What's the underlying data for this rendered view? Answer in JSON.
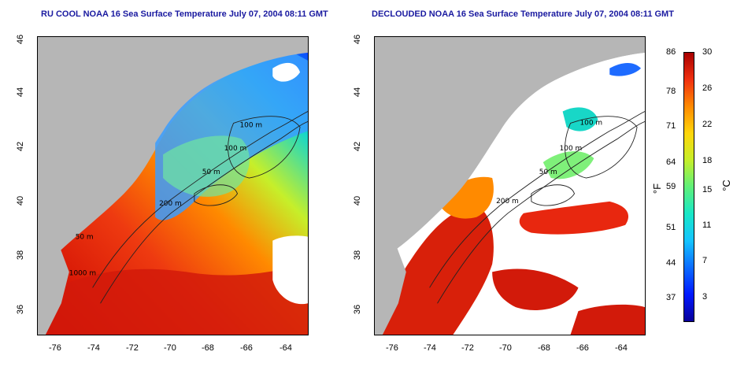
{
  "panels": [
    {
      "title": "RU COOL NOAA 16 Sea Surface Temperature July 07, 2004 08:11 GMT",
      "contour_labels": [
        "100 m",
        "100 m",
        "50 m",
        "200 m",
        "50 m",
        "1000 m"
      ]
    },
    {
      "title": "DECLOUDED NOAA 16 Sea Surface Temperature July 07, 2004 08:11 GMT",
      "contour_labels": [
        "100 m",
        "100 m",
        "50 m",
        "200 m"
      ]
    }
  ],
  "axes": {
    "lat_ticks": [
      "46",
      "44",
      "42",
      "40",
      "38",
      "36"
    ],
    "lon_ticks": [
      "-76",
      "-74",
      "-72",
      "-70",
      "-68",
      "-66",
      "-64"
    ]
  },
  "colorbar": {
    "fahrenheit_ticks": [
      "86",
      "78",
      "71",
      "64",
      "59",
      "51",
      "44",
      "37"
    ],
    "celsius_ticks": [
      "30",
      "26",
      "22",
      "18",
      "15",
      "11",
      "7",
      "3"
    ],
    "unit_f": "°F",
    "unit_c": "°C"
  },
  "colors": {
    "land": "#b6b6b6",
    "warm": "#e8270f",
    "hot": "#b40000",
    "cool": "#1e6bff",
    "cloud": "#ffffff",
    "title": "#1a1aa0"
  }
}
